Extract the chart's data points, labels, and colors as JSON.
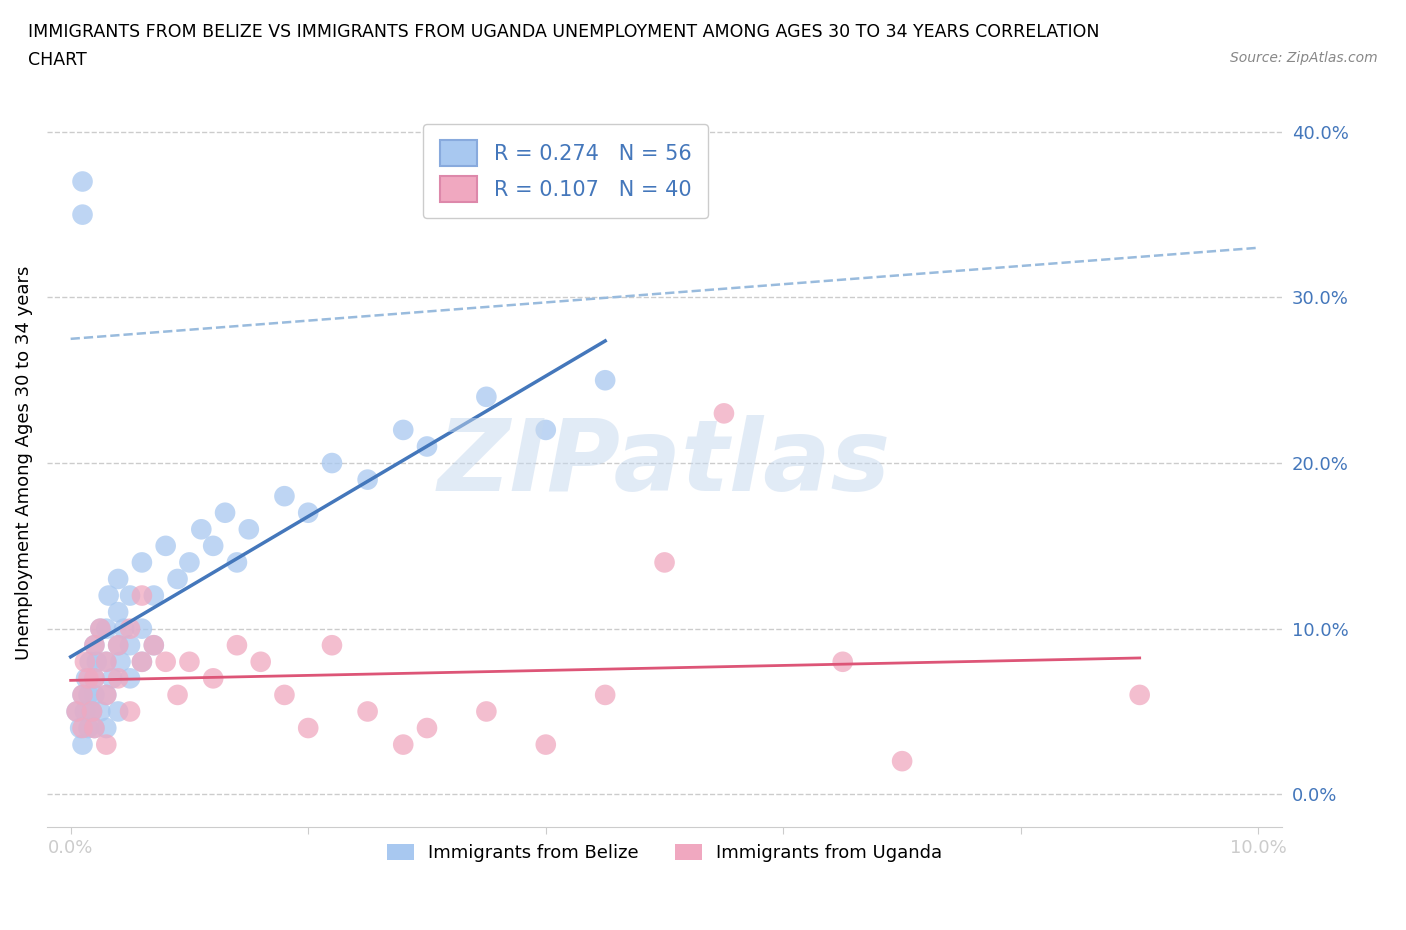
{
  "title_line1": "IMMIGRANTS FROM BELIZE VS IMMIGRANTS FROM UGANDA UNEMPLOYMENT AMONG AGES 30 TO 34 YEARS CORRELATION",
  "title_line2": "CHART",
  "source": "Source: ZipAtlas.com",
  "ylabel": "Unemployment Among Ages 30 to 34 years",
  "xlabel_belize": "Immigrants from Belize",
  "xlabel_uganda": "Immigrants from Uganda",
  "belize_R": 0.274,
  "belize_N": 56,
  "uganda_R": 0.107,
  "uganda_N": 40,
  "xlim_min": 0.0,
  "xlim_max": 0.1,
  "ylim_min": -0.02,
  "ylim_max": 0.42,
  "yticks": [
    0.0,
    0.1,
    0.2,
    0.3,
    0.4
  ],
  "xticks": [
    0.0,
    0.02,
    0.04,
    0.06,
    0.08,
    0.1
  ],
  "belize_color": "#a8c8f0",
  "uganda_color": "#f0a8c0",
  "belize_line_color": "#4477bb",
  "uganda_line_color": "#dd5577",
  "dash_line_color": "#99bbdd",
  "tick_label_color": "#4477bb",
  "watermark": "ZIPatlas",
  "belize_x": [
    0.0005,
    0.0008,
    0.001,
    0.001,
    0.0012,
    0.0013,
    0.0015,
    0.0015,
    0.0016,
    0.0018,
    0.002,
    0.002,
    0.002,
    0.002,
    0.0022,
    0.0025,
    0.0025,
    0.003,
    0.003,
    0.003,
    0.003,
    0.0032,
    0.0035,
    0.004,
    0.004,
    0.004,
    0.004,
    0.0042,
    0.0045,
    0.005,
    0.005,
    0.005,
    0.006,
    0.006,
    0.006,
    0.007,
    0.007,
    0.008,
    0.009,
    0.01,
    0.011,
    0.012,
    0.013,
    0.014,
    0.015,
    0.018,
    0.02,
    0.022,
    0.025,
    0.028,
    0.03,
    0.035,
    0.04,
    0.045,
    0.001,
    0.001
  ],
  "belize_y": [
    0.05,
    0.04,
    0.06,
    0.03,
    0.05,
    0.07,
    0.04,
    0.06,
    0.08,
    0.05,
    0.07,
    0.09,
    0.04,
    0.06,
    0.08,
    0.05,
    0.1,
    0.06,
    0.08,
    0.1,
    0.04,
    0.12,
    0.07,
    0.09,
    0.11,
    0.05,
    0.13,
    0.08,
    0.1,
    0.07,
    0.09,
    0.12,
    0.08,
    0.1,
    0.14,
    0.09,
    0.12,
    0.15,
    0.13,
    0.14,
    0.16,
    0.15,
    0.17,
    0.14,
    0.16,
    0.18,
    0.17,
    0.2,
    0.19,
    0.22,
    0.21,
    0.24,
    0.22,
    0.25,
    0.37,
    0.35
  ],
  "uganda_x": [
    0.0005,
    0.001,
    0.001,
    0.0012,
    0.0015,
    0.0018,
    0.002,
    0.002,
    0.002,
    0.0025,
    0.003,
    0.003,
    0.003,
    0.004,
    0.004,
    0.005,
    0.005,
    0.006,
    0.006,
    0.007,
    0.008,
    0.009,
    0.01,
    0.012,
    0.014,
    0.016,
    0.018,
    0.02,
    0.022,
    0.025,
    0.028,
    0.03,
    0.035,
    0.04,
    0.045,
    0.05,
    0.055,
    0.065,
    0.07,
    0.09
  ],
  "uganda_y": [
    0.05,
    0.06,
    0.04,
    0.08,
    0.07,
    0.05,
    0.09,
    0.07,
    0.04,
    0.1,
    0.08,
    0.06,
    0.03,
    0.09,
    0.07,
    0.1,
    0.05,
    0.12,
    0.08,
    0.09,
    0.08,
    0.06,
    0.08,
    0.07,
    0.09,
    0.08,
    0.06,
    0.04,
    0.09,
    0.05,
    0.03,
    0.04,
    0.05,
    0.03,
    0.06,
    0.14,
    0.23,
    0.08,
    0.02,
    0.06
  ]
}
